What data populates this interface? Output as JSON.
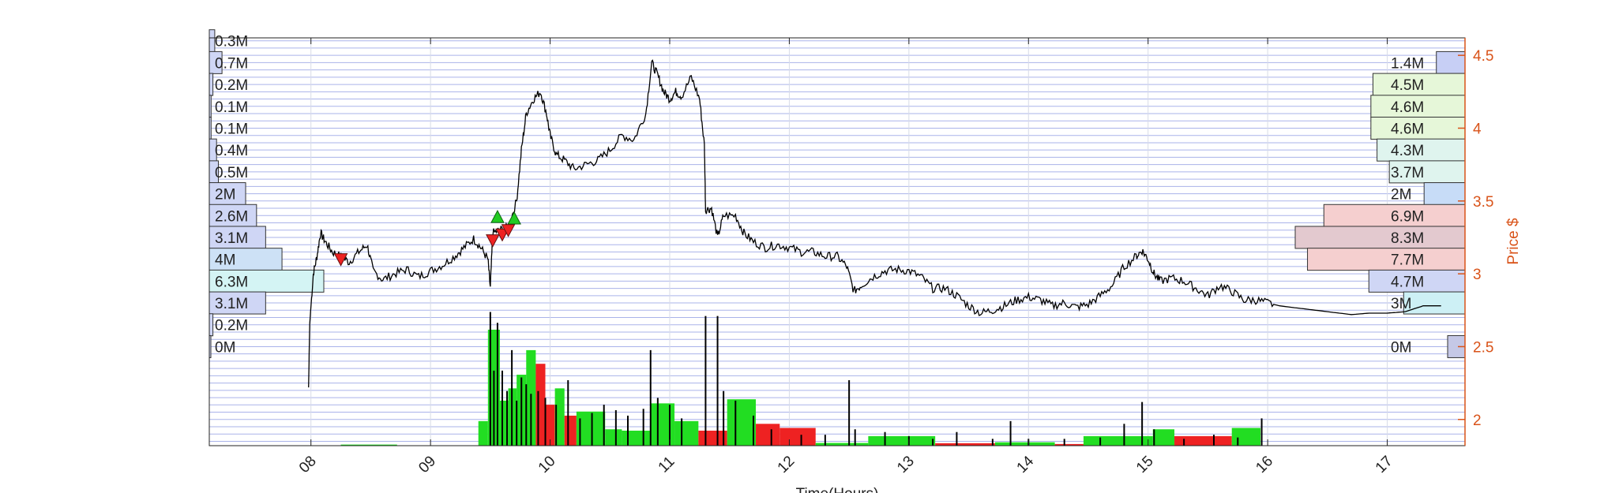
{
  "chart_data": {
    "type": "line",
    "xlabel": "Time(Hours)",
    "ylabel": "Price $",
    "x_ticks": [
      "08",
      "09",
      "10",
      "11",
      "12",
      "13",
      "14",
      "15",
      "16",
      "17"
    ],
    "y_ticks": [
      "2",
      "2.5",
      "3",
      "3.5",
      "4",
      "4.5"
    ],
    "x_range": [
      7.15,
      17.65
    ],
    "ylim": [
      1.82,
      4.62
    ],
    "grid": true,
    "colors": {
      "price_line": "#000000",
      "price_axis": "#d95319",
      "grid": "#b8c2e6",
      "volume_up": "#22dd22",
      "volume_down": "#ee2222",
      "buy_marker": "#22cc22",
      "sell_marker": "#ee2222"
    },
    "price_series": [
      [
        7.98,
        2.22
      ],
      [
        7.99,
        2.66
      ],
      [
        8.02,
        3.0
      ],
      [
        8.05,
        3.12
      ],
      [
        8.08,
        3.28
      ],
      [
        8.12,
        3.22
      ],
      [
        8.18,
        3.15
      ],
      [
        8.25,
        3.12
      ],
      [
        8.32,
        3.08
      ],
      [
        8.4,
        3.15
      ],
      [
        8.47,
        3.2
      ],
      [
        8.52,
        3.02
      ],
      [
        8.6,
        2.96
      ],
      [
        8.7,
        3.0
      ],
      [
        8.8,
        3.03
      ],
      [
        8.9,
        2.98
      ],
      [
        9.0,
        3.02
      ],
      [
        9.1,
        3.06
      ],
      [
        9.2,
        3.12
      ],
      [
        9.28,
        3.18
      ],
      [
        9.36,
        3.24
      ],
      [
        9.42,
        3.18
      ],
      [
        9.48,
        3.1
      ],
      [
        9.5,
        2.9
      ],
      [
        9.52,
        3.28
      ],
      [
        9.58,
        3.3
      ],
      [
        9.65,
        3.32
      ],
      [
        9.72,
        3.5
      ],
      [
        9.76,
        3.85
      ],
      [
        9.8,
        4.1
      ],
      [
        9.86,
        4.2
      ],
      [
        9.92,
        4.25
      ],
      [
        9.97,
        4.1
      ],
      [
        10.0,
        3.95
      ],
      [
        10.05,
        3.82
      ],
      [
        10.12,
        3.78
      ],
      [
        10.2,
        3.72
      ],
      [
        10.3,
        3.75
      ],
      [
        10.4,
        3.78
      ],
      [
        10.5,
        3.85
      ],
      [
        10.6,
        3.95
      ],
      [
        10.7,
        3.92
      ],
      [
        10.8,
        4.1
      ],
      [
        10.85,
        4.45
      ],
      [
        10.9,
        4.36
      ],
      [
        10.95,
        4.25
      ],
      [
        11.0,
        4.2
      ],
      [
        11.05,
        4.25
      ],
      [
        11.1,
        4.22
      ],
      [
        11.18,
        4.35
      ],
      [
        11.25,
        4.2
      ],
      [
        11.29,
        3.88
      ],
      [
        11.3,
        3.44
      ],
      [
        11.35,
        3.45
      ],
      [
        11.4,
        3.25
      ],
      [
        11.45,
        3.4
      ],
      [
        11.55,
        3.4
      ],
      [
        11.62,
        3.28
      ],
      [
        11.7,
        3.22
      ],
      [
        11.8,
        3.18
      ],
      [
        11.9,
        3.2
      ],
      [
        12.0,
        3.18
      ],
      [
        12.1,
        3.15
      ],
      [
        12.2,
        3.15
      ],
      [
        12.3,
        3.12
      ],
      [
        12.4,
        3.12
      ],
      [
        12.48,
        3.05
      ],
      [
        12.54,
        2.88
      ],
      [
        12.6,
        2.92
      ],
      [
        12.7,
        2.98
      ],
      [
        12.8,
        3.02
      ],
      [
        12.9,
        3.03
      ],
      [
        13.0,
        3.02
      ],
      [
        13.1,
        2.98
      ],
      [
        13.2,
        2.9
      ],
      [
        13.3,
        2.9
      ],
      [
        13.4,
        2.85
      ],
      [
        13.5,
        2.78
      ],
      [
        13.6,
        2.73
      ],
      [
        13.7,
        2.75
      ],
      [
        13.8,
        2.78
      ],
      [
        13.9,
        2.82
      ],
      [
        14.0,
        2.84
      ],
      [
        14.1,
        2.82
      ],
      [
        14.2,
        2.78
      ],
      [
        14.3,
        2.8
      ],
      [
        14.4,
        2.77
      ],
      [
        14.5,
        2.79
      ],
      [
        14.6,
        2.85
      ],
      [
        14.7,
        2.92
      ],
      [
        14.8,
        3.05
      ],
      [
        14.9,
        3.12
      ],
      [
        14.95,
        3.16
      ],
      [
        15.0,
        3.1
      ],
      [
        15.05,
        3.0
      ],
      [
        15.1,
        2.95
      ],
      [
        15.2,
        2.97
      ],
      [
        15.3,
        2.95
      ],
      [
        15.4,
        2.9
      ],
      [
        15.5,
        2.85
      ],
      [
        15.6,
        2.92
      ],
      [
        15.7,
        2.88
      ],
      [
        15.8,
        2.82
      ],
      [
        15.9,
        2.82
      ],
      [
        16.0,
        2.8
      ],
      [
        16.1,
        2.78
      ],
      [
        16.3,
        2.76
      ],
      [
        16.5,
        2.74
      ],
      [
        16.7,
        2.72
      ],
      [
        16.85,
        2.73
      ],
      [
        17.0,
        2.73
      ],
      [
        17.15,
        2.74
      ],
      [
        17.3,
        2.78
      ],
      [
        17.45,
        2.78
      ]
    ],
    "buy_markers": [
      [
        9.56,
        3.39
      ],
      [
        9.7,
        3.38
      ]
    ],
    "sell_markers": [
      [
        8.25,
        3.1
      ],
      [
        9.52,
        3.23
      ],
      [
        9.6,
        3.27
      ],
      [
        9.65,
        3.3
      ]
    ],
    "volume_blocks": [
      {
        "x0": 8.25,
        "x1": 8.72,
        "h": 0.008,
        "c": "up"
      },
      {
        "x0": 9.4,
        "x1": 9.48,
        "h": 0.18,
        "c": "up"
      },
      {
        "x0": 9.48,
        "x1": 9.58,
        "h": 0.85,
        "c": "up"
      },
      {
        "x0": 9.58,
        "x1": 9.65,
        "h": 0.33,
        "c": "up"
      },
      {
        "x0": 9.65,
        "x1": 9.72,
        "h": 0.42,
        "c": "up"
      },
      {
        "x0": 9.72,
        "x1": 9.8,
        "h": 0.52,
        "c": "up"
      },
      {
        "x0": 9.8,
        "x1": 9.88,
        "h": 0.7,
        "c": "up"
      },
      {
        "x0": 9.88,
        "x1": 9.96,
        "h": 0.6,
        "c": "down"
      },
      {
        "x0": 9.96,
        "x1": 10.04,
        "h": 0.3,
        "c": "down"
      },
      {
        "x0": 10.04,
        "x1": 10.12,
        "h": 0.42,
        "c": "up"
      },
      {
        "x0": 10.12,
        "x1": 10.22,
        "h": 0.22,
        "c": "down"
      },
      {
        "x0": 10.22,
        "x1": 10.46,
        "h": 0.25,
        "c": "up"
      },
      {
        "x0": 10.46,
        "x1": 10.6,
        "h": 0.12,
        "c": "up"
      },
      {
        "x0": 10.6,
        "x1": 10.84,
        "h": 0.11,
        "c": "up"
      },
      {
        "x0": 10.84,
        "x1": 11.04,
        "h": 0.31,
        "c": "up"
      },
      {
        "x0": 11.04,
        "x1": 11.24,
        "h": 0.18,
        "c": "up"
      },
      {
        "x0": 11.24,
        "x1": 11.48,
        "h": 0.11,
        "c": "down"
      },
      {
        "x0": 11.48,
        "x1": 11.72,
        "h": 0.34,
        "c": "up"
      },
      {
        "x0": 11.72,
        "x1": 11.92,
        "h": 0.16,
        "c": "down"
      },
      {
        "x0": 11.92,
        "x1": 12.22,
        "h": 0.13,
        "c": "down"
      },
      {
        "x0": 12.22,
        "x1": 12.66,
        "h": 0.02,
        "c": "up"
      },
      {
        "x0": 12.66,
        "x1": 13.22,
        "h": 0.07,
        "c": "up"
      },
      {
        "x0": 13.22,
        "x1": 13.72,
        "h": 0.018,
        "c": "down"
      },
      {
        "x0": 13.72,
        "x1": 14.22,
        "h": 0.025,
        "c": "up"
      },
      {
        "x0": 14.22,
        "x1": 14.46,
        "h": 0.012,
        "c": "down"
      },
      {
        "x0": 14.46,
        "x1": 15.04,
        "h": 0.07,
        "c": "up"
      },
      {
        "x0": 15.04,
        "x1": 15.22,
        "h": 0.12,
        "c": "up"
      },
      {
        "x0": 15.22,
        "x1": 15.7,
        "h": 0.07,
        "c": "down"
      },
      {
        "x0": 15.7,
        "x1": 15.94,
        "h": 0.13,
        "c": "up"
      }
    ],
    "volume_spikes": [
      [
        9.5,
        0.98
      ],
      [
        9.53,
        0.55
      ],
      [
        9.56,
        0.9
      ],
      [
        9.6,
        0.55
      ],
      [
        9.64,
        0.4
      ],
      [
        9.68,
        0.7
      ],
      [
        9.72,
        0.33
      ],
      [
        9.76,
        0.5
      ],
      [
        9.8,
        0.45
      ],
      [
        9.84,
        0.38
      ],
      [
        9.9,
        0.4
      ],
      [
        9.96,
        0.35
      ],
      [
        10.05,
        0.3
      ],
      [
        10.15,
        0.48
      ],
      [
        10.25,
        0.2
      ],
      [
        10.35,
        0.24
      ],
      [
        10.45,
        0.3
      ],
      [
        10.55,
        0.26
      ],
      [
        10.65,
        0.22
      ],
      [
        10.78,
        0.27
      ],
      [
        10.84,
        0.7
      ],
      [
        10.9,
        0.35
      ],
      [
        11.0,
        0.3
      ],
      [
        11.1,
        0.2
      ],
      [
        11.3,
        0.95
      ],
      [
        11.4,
        0.95
      ],
      [
        11.45,
        0.4
      ],
      [
        11.55,
        0.33
      ],
      [
        11.7,
        0.22
      ],
      [
        11.85,
        0.12
      ],
      [
        12.1,
        0.08
      ],
      [
        12.3,
        0.08
      ],
      [
        12.5,
        0.48
      ],
      [
        12.55,
        0.12
      ],
      [
        12.8,
        0.1
      ],
      [
        13.0,
        0.07
      ],
      [
        13.2,
        0.05
      ],
      [
        13.4,
        0.1
      ],
      [
        13.7,
        0.05
      ],
      [
        13.85,
        0.18
      ],
      [
        14.0,
        0.05
      ],
      [
        14.3,
        0.05
      ],
      [
        14.6,
        0.06
      ],
      [
        14.8,
        0.16
      ],
      [
        14.95,
        0.32
      ],
      [
        15.05,
        0.12
      ],
      [
        15.3,
        0.05
      ],
      [
        15.55,
        0.08
      ],
      [
        15.75,
        0.06
      ],
      [
        15.95,
        0.2
      ]
    ],
    "volume_profile_left": [
      {
        "price": 4.6,
        "label": "0.3M",
        "value": 0.3
      },
      {
        "price": 4.45,
        "label": "0.7M",
        "value": 0.7
      },
      {
        "price": 4.3,
        "label": "0.2M",
        "value": 0.2
      },
      {
        "price": 4.15,
        "label": "0.1M",
        "value": 0.1
      },
      {
        "price": 4.0,
        "label": "0.1M",
        "value": 0.1
      },
      {
        "price": 3.85,
        "label": "0.4M",
        "value": 0.4
      },
      {
        "price": 3.7,
        "label": "0.5M",
        "value": 0.5
      },
      {
        "price": 3.55,
        "label": "2M",
        "value": 2.0
      },
      {
        "price": 3.4,
        "label": "2.6M",
        "value": 2.6
      },
      {
        "price": 3.25,
        "label": "3.1M",
        "value": 3.1
      },
      {
        "price": 3.1,
        "label": "4M",
        "value": 4.0
      },
      {
        "price": 2.95,
        "label": "6.3M",
        "value": 6.3
      },
      {
        "price": 2.8,
        "label": "3.1M",
        "value": 3.1
      },
      {
        "price": 2.65,
        "label": "0.2M",
        "value": 0.2
      },
      {
        "price": 2.5,
        "label": "0M",
        "value": 0.0
      }
    ],
    "volume_profile_right": [
      {
        "price": 4.45,
        "label": "1.4M",
        "value": 1.4
      },
      {
        "price": 4.3,
        "label": "4.5M",
        "value": 4.5
      },
      {
        "price": 4.15,
        "label": "4.6M",
        "value": 4.6
      },
      {
        "price": 4.0,
        "label": "4.6M",
        "value": 4.6
      },
      {
        "price": 3.85,
        "label": "4.3M",
        "value": 4.3
      },
      {
        "price": 3.7,
        "label": "3.7M",
        "value": 3.7
      },
      {
        "price": 3.55,
        "label": "2M",
        "value": 2.0
      },
      {
        "price": 3.4,
        "label": "6.9M",
        "value": 6.9
      },
      {
        "price": 3.25,
        "label": "8.3M",
        "value": 8.3
      },
      {
        "price": 3.1,
        "label": "7.7M",
        "value": 7.7
      },
      {
        "price": 2.95,
        "label": "4.7M",
        "value": 4.7
      },
      {
        "price": 2.8,
        "label": "3M",
        "value": 3.0
      },
      {
        "price": 2.5,
        "label": "0M",
        "value": 0.0
      }
    ]
  }
}
